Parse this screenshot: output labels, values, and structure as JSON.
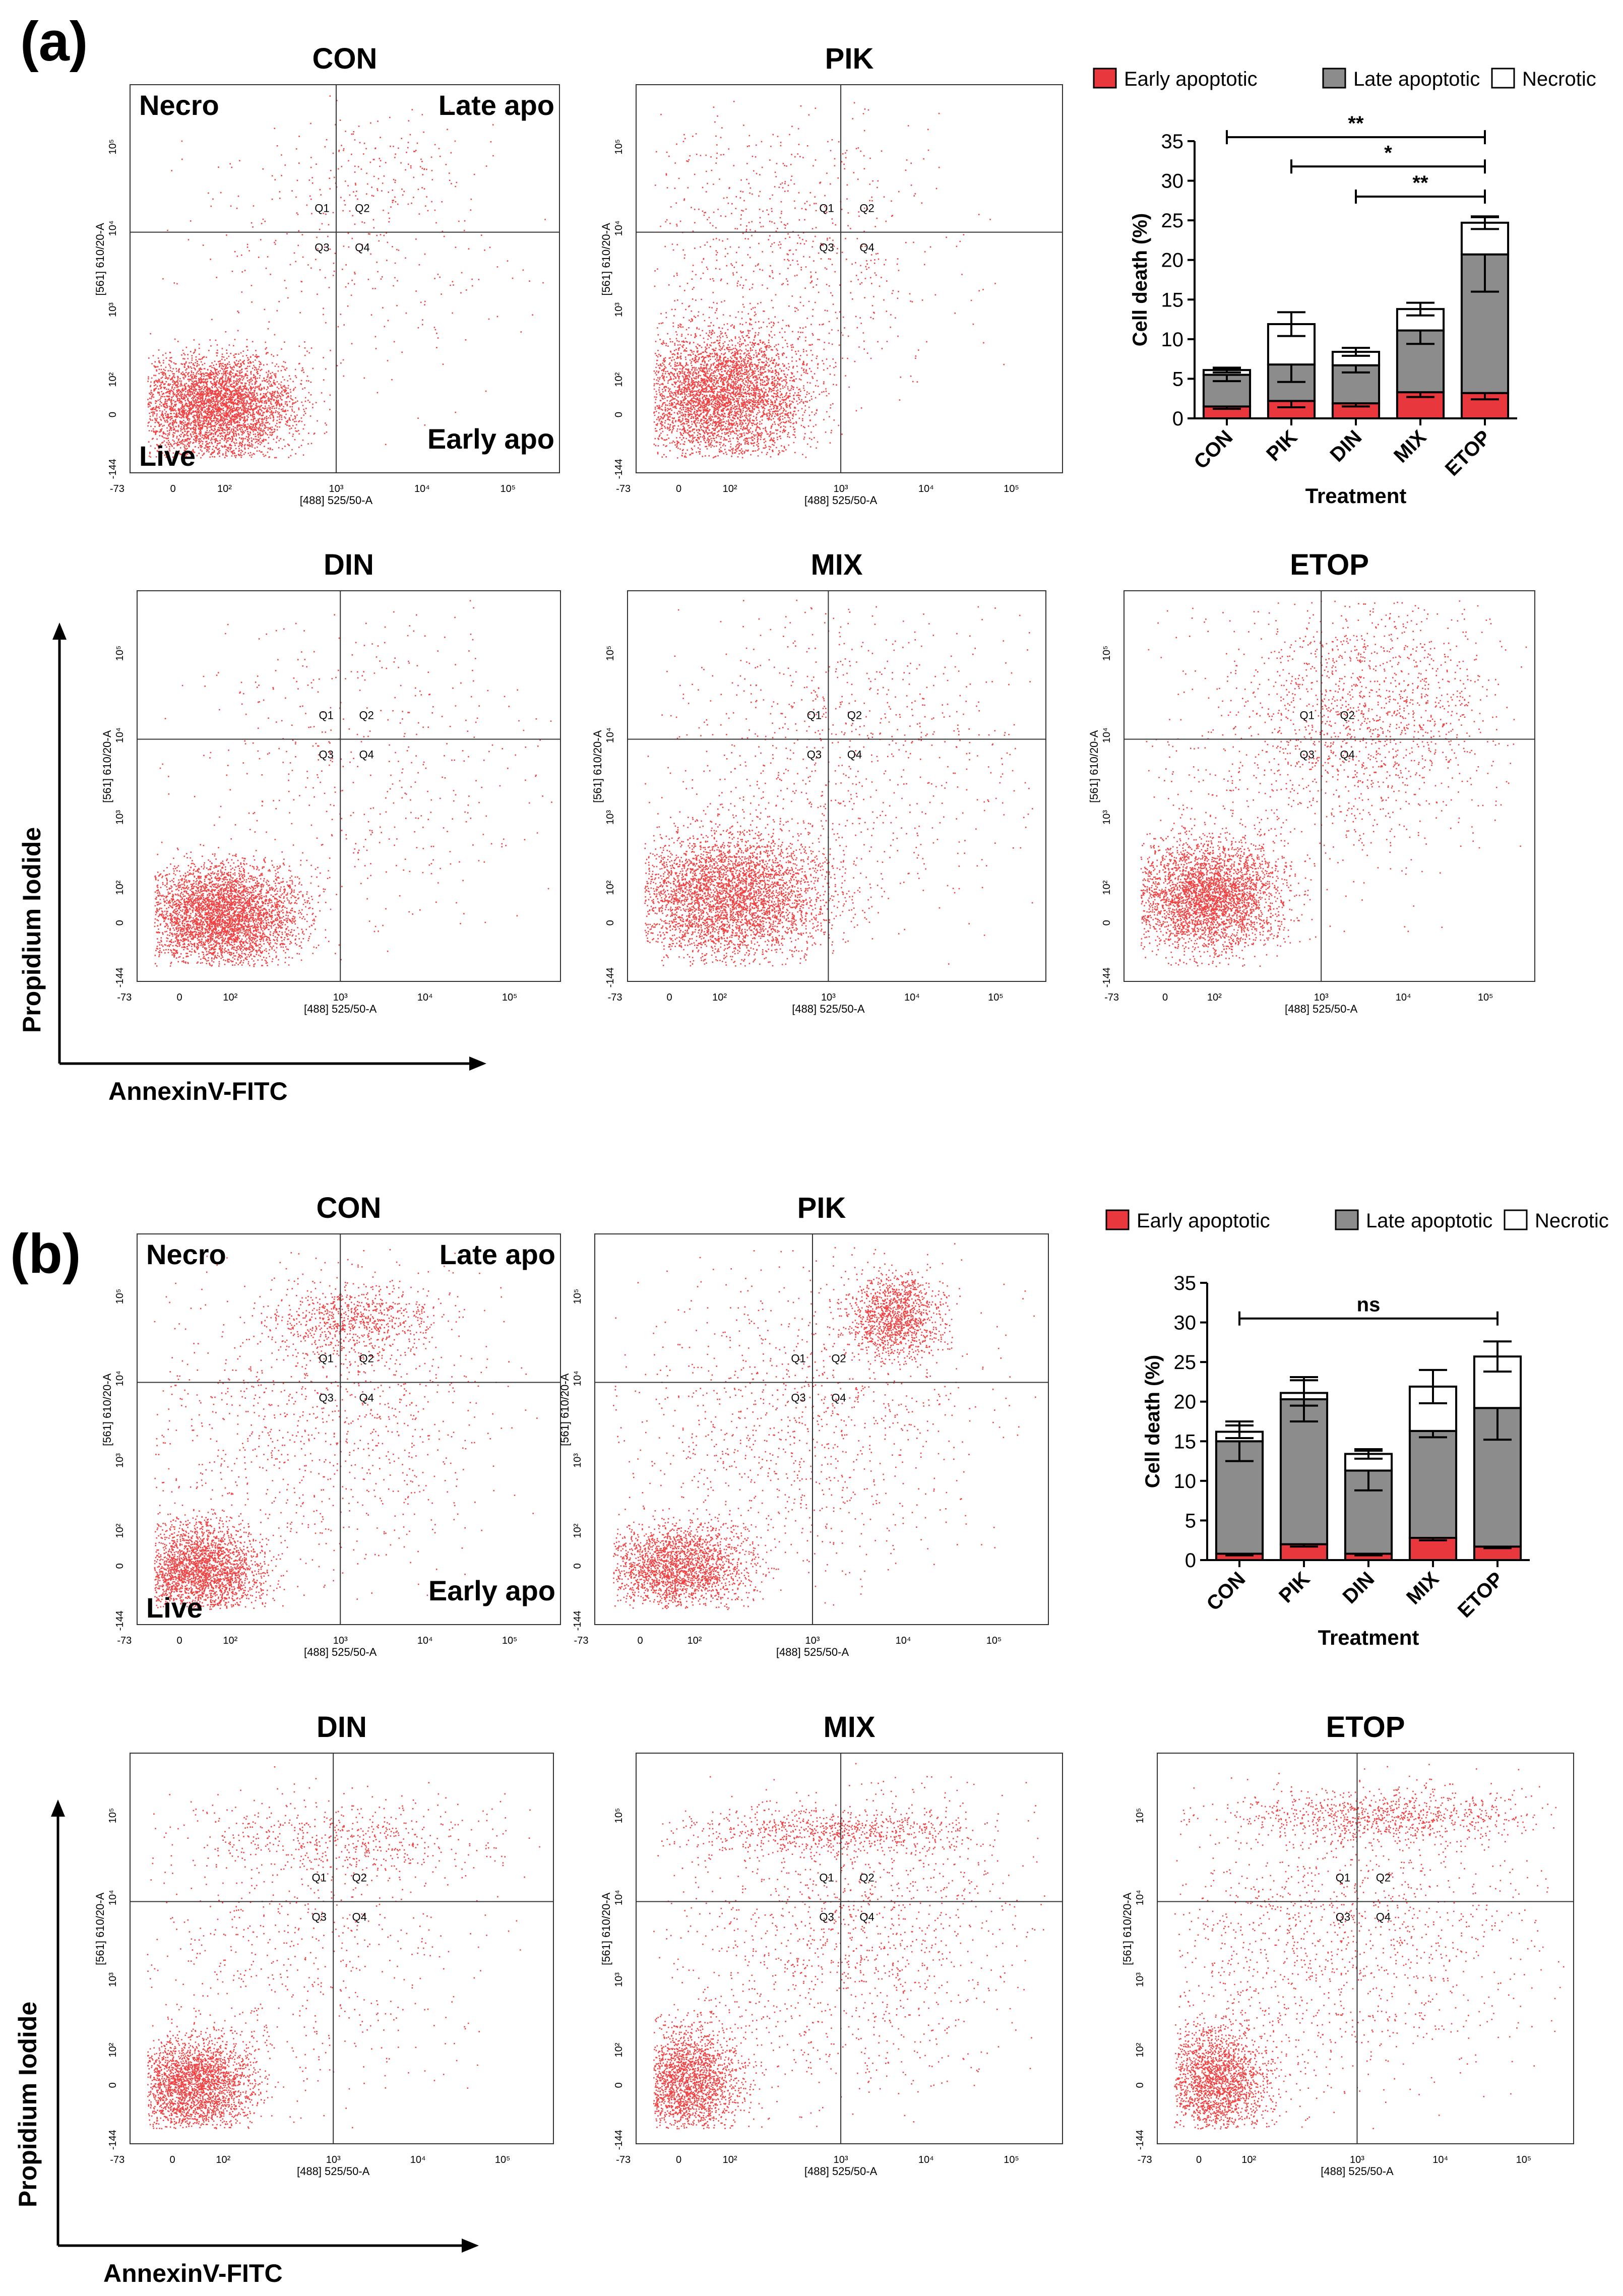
{
  "figure": {
    "panels": [
      {
        "label": "(a)",
        "axis_y_title": "Propidium Iodide",
        "axis_x_title": "AnnexinV-FITC",
        "flow_plots": [
          {
            "title": "CON",
            "quadrant_labels": {
              "tl": "Necro",
              "tr": "Late apo",
              "bl": "Live",
              "br": "Early apo"
            }
          },
          {
            "title": "PIK"
          },
          {
            "title": "DIN"
          },
          {
            "title": "MIX"
          },
          {
            "title": "ETOP"
          }
        ]
      },
      {
        "label": "(b)",
        "axis_y_title": "Propidium Iodide",
        "axis_x_title": "AnnexinV-FITC",
        "flow_plots": [
          {
            "title": "CON",
            "quadrant_labels": {
              "tl": "Necro",
              "tr": "Late apo",
              "bl": "Live",
              "br": "Early apo"
            }
          },
          {
            "title": "PIK"
          },
          {
            "title": "DIN"
          },
          {
            "title": "MIX"
          },
          {
            "title": "ETOP"
          }
        ]
      }
    ],
    "flow_axes": {
      "x_label": "[488] 525/50-A",
      "y_label": "[561] 610/20-A",
      "x_ticks": [
        "-73",
        "0",
        "10²",
        "10³",
        "10⁴",
        "10⁵"
      ],
      "y_ticks": [
        "-144",
        "0",
        "10²",
        "10³",
        "10⁴",
        "10⁵"
      ],
      "quadrants": [
        "Q1",
        "Q2",
        "Q3",
        "Q4"
      ]
    },
    "colors": {
      "early": "#e8383d",
      "late": "#8c8c8c",
      "necrotic": "#ffffff",
      "dots": "#ee2222",
      "stroke": "#000000"
    }
  },
  "chart_data": [
    {
      "type": "bar",
      "stacked": true,
      "panel": "(a)",
      "categories": [
        "CON",
        "PIK",
        "DIN",
        "MIX",
        "ETOP"
      ],
      "series": [
        {
          "name": "Early apoptotic",
          "values": [
            1.5,
            2.2,
            1.9,
            3.3,
            3.2
          ],
          "errors": [
            0.3,
            0.8,
            0.4,
            0.6,
            0.8
          ]
        },
        {
          "name": "Late apoptotic",
          "values": [
            4.0,
            4.6,
            4.8,
            7.8,
            17.5
          ],
          "errors": [
            0.8,
            2.2,
            0.9,
            1.7,
            4.7
          ]
        },
        {
          "name": "Necrotic",
          "values": [
            0.6,
            5.1,
            1.7,
            2.7,
            4.0
          ],
          "errors": [
            0.3,
            1.5,
            0.5,
            0.8,
            0.8
          ]
        }
      ],
      "xlabel": "Treatment",
      "ylabel": "Cell death (%)",
      "ylim": [
        0,
        35
      ],
      "yticks": [
        "0",
        "5",
        "10",
        "15",
        "20",
        "25",
        "30",
        "35"
      ],
      "legend": "top",
      "significance": [
        {
          "from": "CON",
          "to": "ETOP",
          "label": "**",
          "y": 35.5
        },
        {
          "from": "PIK",
          "to": "ETOP",
          "label": "*",
          "y": 31.8
        },
        {
          "from": "DIN",
          "to": "ETOP",
          "label": "**",
          "y": 28.0
        }
      ]
    },
    {
      "type": "bar",
      "stacked": true,
      "panel": "(b)",
      "categories": [
        "CON",
        "PIK",
        "DIN",
        "MIX",
        "ETOP"
      ],
      "series": [
        {
          "name": "Early apoptotic",
          "values": [
            0.8,
            2.0,
            0.8,
            2.8,
            1.7
          ],
          "errors": [
            0.2,
            0.3,
            0.2,
            0.3,
            0.2
          ]
        },
        {
          "name": "Late apoptotic",
          "values": [
            14.2,
            18.3,
            10.5,
            13.5,
            17.5
          ],
          "errors": [
            2.5,
            2.8,
            2.5,
            0.8,
            4.0
          ]
        },
        {
          "name": "Necrotic",
          "values": [
            1.2,
            0.8,
            2.1,
            5.6,
            6.5
          ],
          "errors": [
            0.8,
            1.6,
            0.6,
            2.1,
            1.9
          ]
        }
      ],
      "xlabel": "Treatment",
      "ylabel": "Cell death (%)",
      "ylim": [
        0,
        35
      ],
      "yticks": [
        "0",
        "5",
        "10",
        "15",
        "20",
        "25",
        "30",
        "35"
      ],
      "legend": "top",
      "significance": [
        {
          "from": "CON",
          "to": "ETOP",
          "label": "ns",
          "y": 30.5
        }
      ]
    }
  ]
}
